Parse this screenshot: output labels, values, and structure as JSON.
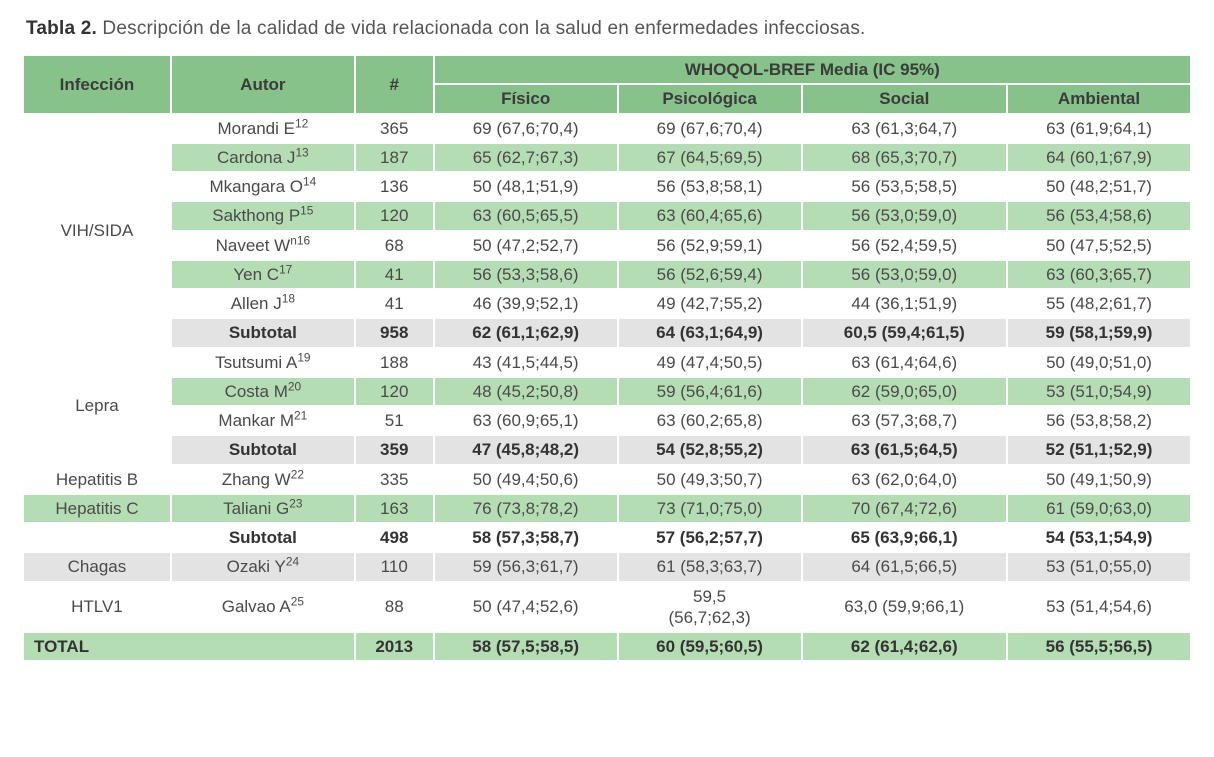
{
  "title_bold": "Tabla 2.",
  "title_rest": " Descripción de la calidad de vida relacionada con la salud en enfermedades infecciosas.",
  "columns": {
    "infeccion": "Infección",
    "autor": "Autor",
    "n": "#",
    "group": "WHOQOL-BREF Media (IC 95%)",
    "fisico": "Físico",
    "psicologica": "Psicológica",
    "social": "Social",
    "ambiental": "Ambiental"
  },
  "sections": [
    {
      "name": "VIH/SIDA",
      "rows": [
        {
          "autor": "Morandi E",
          "ref": "12",
          "n": "365",
          "fisico": "69 (67,6;70,4)",
          "psico": "69 (67,6;70,4)",
          "social": "63 (61,3;64,7)",
          "amb": "63 (61,9;64,1)",
          "bg": "row-white"
        },
        {
          "autor": "Cardona J",
          "ref": "13",
          "n": "187",
          "fisico": "65 (62,7;67,3)",
          "psico": "67 (64,5;69,5)",
          "social": "68 (65,3;70,7)",
          "amb": "64 (60,1;67,9)",
          "bg": "row-green"
        },
        {
          "autor": "Mkangara O",
          "ref": "14",
          "n": "136",
          "fisico": "50 (48,1;51,9)",
          "psico": "56 (53,8;58,1)",
          "social": "56 (53,5;58,5)",
          "amb": "50 (48,2;51,7)",
          "bg": "row-white"
        },
        {
          "autor": "Sakthong P",
          "ref": "15",
          "n": "120",
          "fisico": "63 (60,5;65,5)",
          "psico": "63 (60,4;65,6)",
          "social": "56 (53,0;59,0)",
          "amb": "56 (53,4;58,6)",
          "bg": "row-green"
        },
        {
          "autor": "Naveet W",
          "ref": "n16",
          "n": "68",
          "fisico": "50 (47,2;52,7)",
          "psico": "56 (52,9;59,1)",
          "social": "56 (52,4;59,5)",
          "amb": "50 (47,5;52,5)",
          "bg": "row-white"
        },
        {
          "autor": "Yen C",
          "ref": "17",
          "n": "41",
          "fisico": "56 (53,3;58,6)",
          "psico": "56 (52,6;59,4)",
          "social": "56 (53,0;59,0)",
          "amb": "63 (60,3;65,7)",
          "bg": "row-green"
        },
        {
          "autor": "Allen J",
          "ref": "18",
          "n": "41",
          "fisico": "46 (39,9;52,1)",
          "psico": "49 (42,7;55,2)",
          "social": "44 (36,1;51,9)",
          "amb": "55 (48,2;61,7)",
          "bg": "row-white"
        }
      ],
      "subtotal": {
        "n": "958",
        "fisico": "62 (61,1;62,9)",
        "psico": "64 (63,1;64,9)",
        "social": "60,5 (59,4;61,5)",
        "amb": "59 (58,1;59,9)"
      }
    },
    {
      "name": "Lepra",
      "rows": [
        {
          "autor": "Tsutsumi A",
          "ref": "19",
          "n": "188",
          "fisico": "43 (41,5;44,5)",
          "psico": "49 (47,4;50,5)",
          "social": "63 (61,4;64,6)",
          "amb": "50 (49,0;51,0)",
          "bg": "row-white"
        },
        {
          "autor": "Costa M",
          "ref": "20",
          "n": "120",
          "fisico": "48 (45,2;50,8)",
          "psico": "59 (56,4;61,6)",
          "social": "62 (59,0;65,0)",
          "amb": "53 (51,0;54,9)",
          "bg": "row-green"
        },
        {
          "autor": "Mankar M",
          "ref": "21",
          "n": "51",
          "fisico": "63 (60,9;65,1)",
          "psico": "63 (60,2;65,8)",
          "social": "63 (57,3;68,7)",
          "amb": "56 (53,8;58,2)",
          "bg": "row-white"
        }
      ],
      "subtotal": {
        "n": "359",
        "fisico": "47 (45,8;48,2)",
        "psico": "54 (52,8;55,2)",
        "social": "63 (61,5;64,5)",
        "amb": "52 (51,1;52,9)"
      }
    }
  ],
  "singles": [
    {
      "name": "Hepatitis B",
      "autor": "Zhang W",
      "ref": "22",
      "n": "335",
      "fisico": "50 (49,4;50,6)",
      "psico": "50 (49,3;50,7)",
      "social": "63 (62,0;64,0)",
      "amb": "50 (49,1;50,9)",
      "bg": "row-white"
    },
    {
      "name": "Hepatitis C",
      "autor": "Taliani G",
      "ref": "23",
      "n": "163",
      "fisico": "76 (73,8;78,2)",
      "psico": "73 (71,0;75,0)",
      "social": "70 (67,4;72,6)",
      "amb": "61 (59,0;63,0)",
      "bg": "row-green"
    }
  ],
  "hep_subtotal": {
    "n": "498",
    "fisico": "58 (57,3;58,7)",
    "psico": "57 (56,2;57,7)",
    "social": "65 (63,9;66,1)",
    "amb": "54 (53,1;54,9)"
  },
  "chagas": {
    "name": "Chagas",
    "autor": "Ozaki Y",
    "ref": "24",
    "n": "110",
    "fisico": "59 (56,3;61,7)",
    "psico": "61 (58,3;63,7)",
    "social": "64 (61,5;66,5)",
    "amb": "53 (51,0;55,0)",
    "bg": "row-grey"
  },
  "htlv": {
    "name": "HTLV1",
    "autor": "Galvao A",
    "ref": "25",
    "n": "88",
    "fisico": "50 (47,4;52,6)",
    "psico_a": "59,5",
    "psico_b": "(56,7;62,3)",
    "social": "63,0 (59,9;66,1)",
    "amb": "53 (51,4;54,6)",
    "bg": "row-white"
  },
  "total": {
    "label": "TOTAL",
    "n": "2013",
    "fisico": "58 (57,5;58,5)",
    "psico": "60 (59,5;60,5)",
    "social": "62 (61,4;62,6)",
    "amb": "56 (55,5;56,5)"
  },
  "subtotal_label": "Subtotal",
  "colors": {
    "header": "#86c289",
    "band_green": "#b5ddb3",
    "band_grey": "#e3e3e3"
  }
}
